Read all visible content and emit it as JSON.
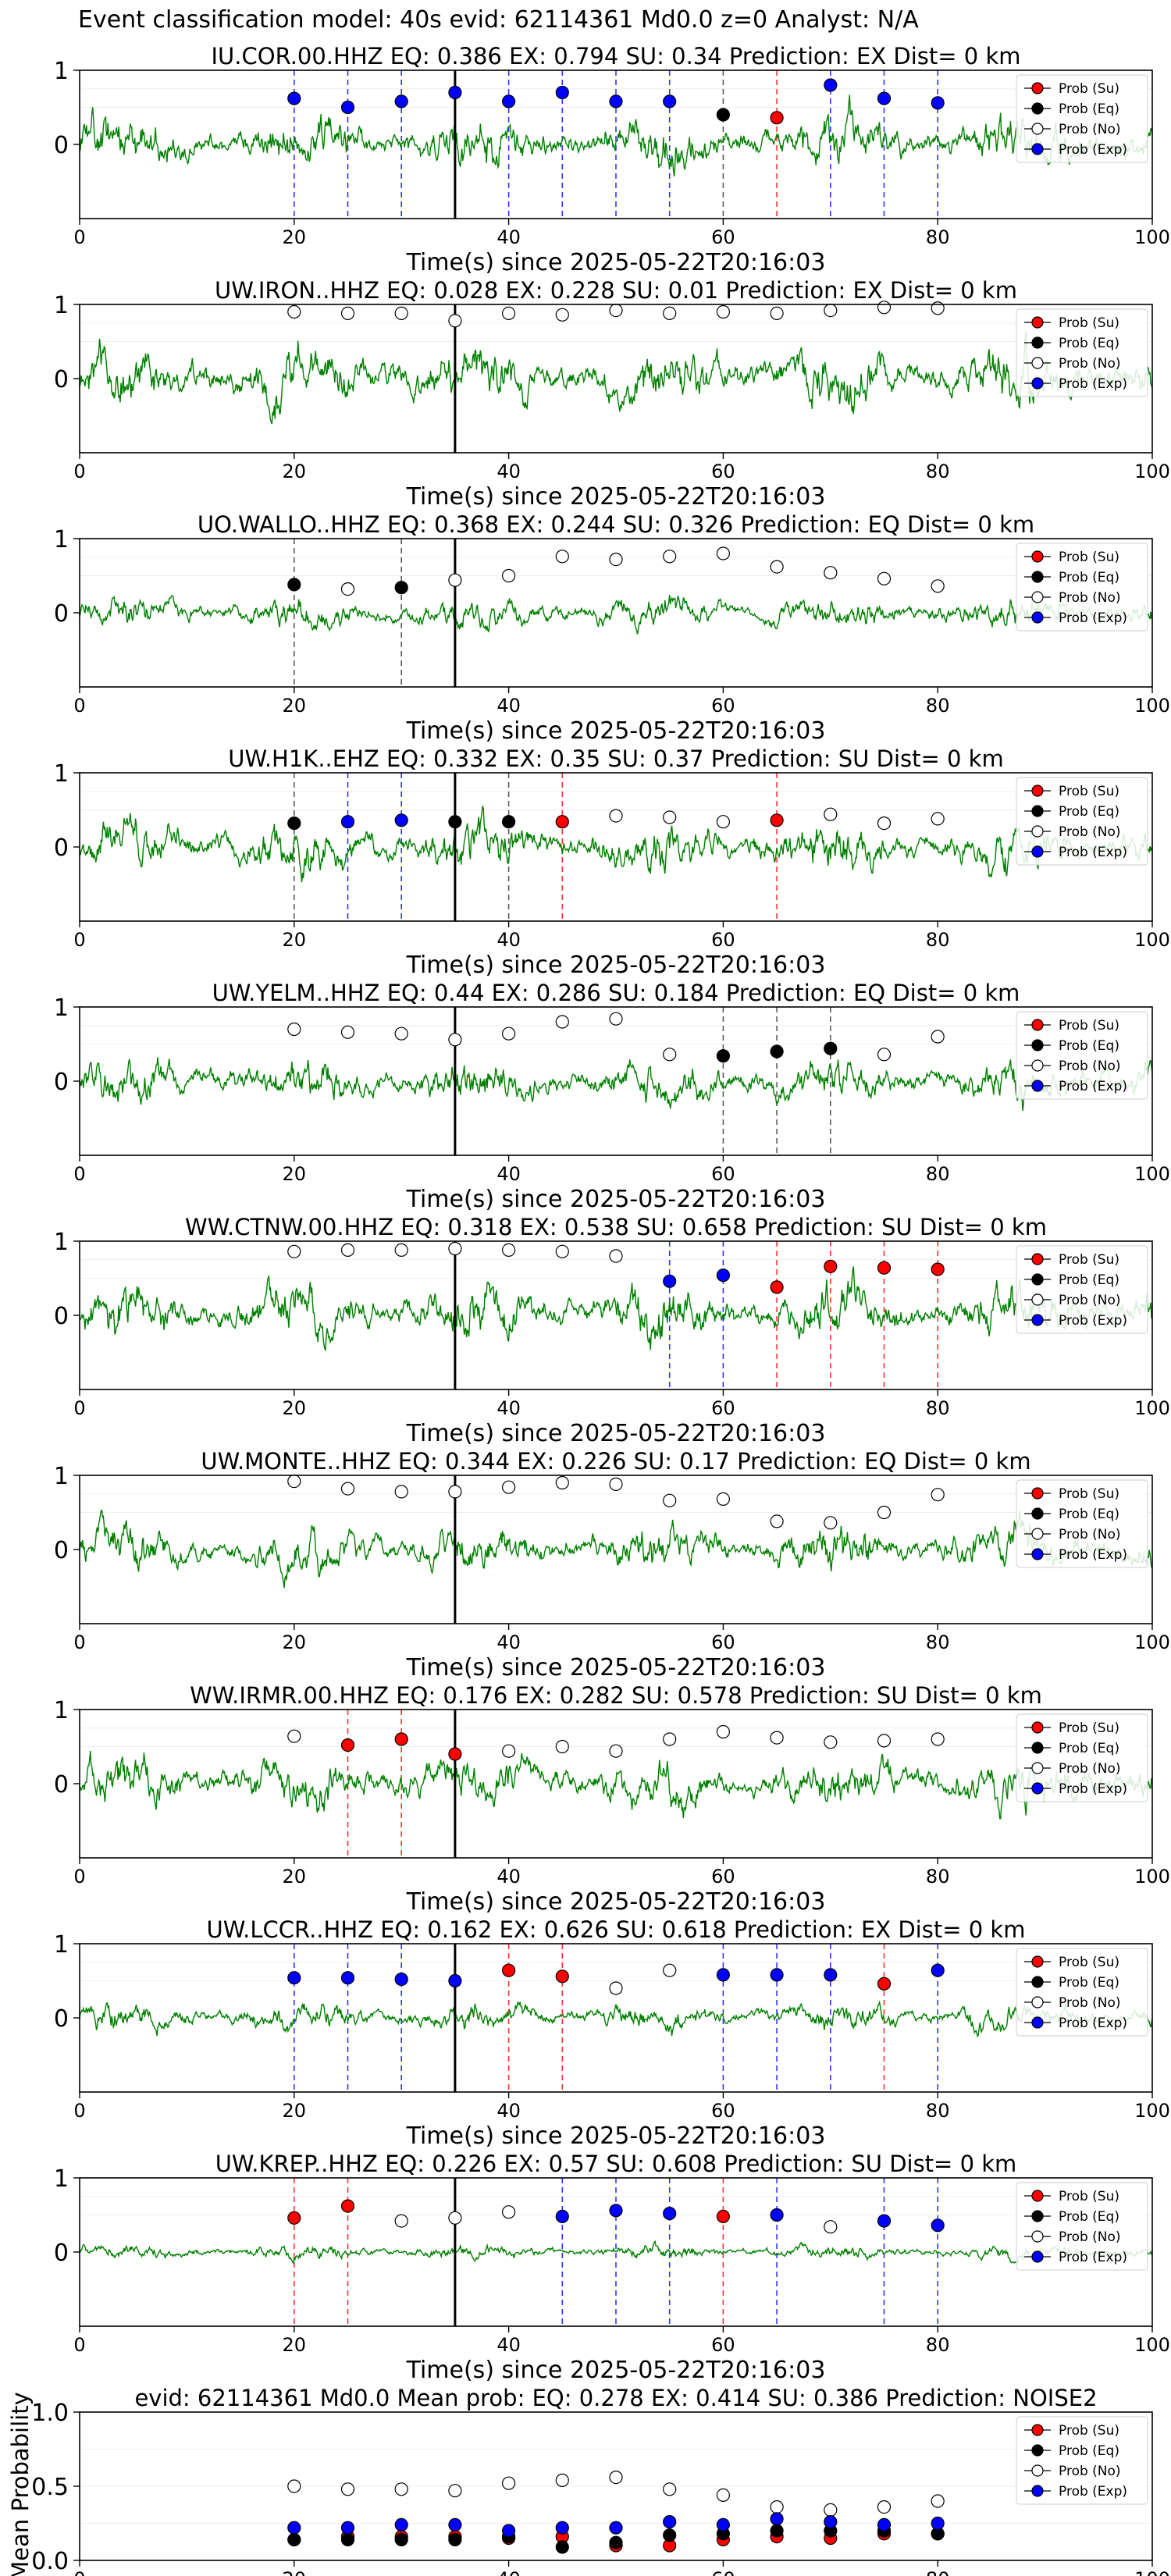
{
  "suptitle": "Event classification model: 40s evid: 62114361 Md0.0 z=0 Analyst: N/A",
  "legend": [
    "Prob (Su)",
    "Prob (Eq)",
    "Prob (No)",
    "Prob (Exp)"
  ],
  "colors": {
    "su": "#ff0000",
    "eq": "#000000",
    "no": "#ffffff",
    "exp": "#0000ff",
    "waveform": "#008000"
  },
  "xlabel": "Time(s) since 2025-05-22T20:16:03",
  "x_ticks": [
    0,
    20,
    40,
    60,
    80,
    100
  ],
  "y_ticks": [
    0,
    1
  ],
  "event_line_x": 35,
  "chart_data": [
    {
      "type": "line",
      "title": "IU.COR.00.HHZ   EQ: 0.386  EX: 0.794  SU: 0.34   Prediction: EX    Dist= 0 km",
      "xlim": [
        0,
        100
      ],
      "ylim": [
        -1,
        1
      ],
      "amp": 0.55,
      "seed": 11,
      "points": [
        {
          "x": 20,
          "y": 0.62,
          "c": "exp"
        },
        {
          "x": 25,
          "y": 0.5,
          "c": "exp"
        },
        {
          "x": 30,
          "y": 0.58,
          "c": "exp"
        },
        {
          "x": 35,
          "y": 0.7,
          "c": "exp"
        },
        {
          "x": 40,
          "y": 0.58,
          "c": "exp"
        },
        {
          "x": 45,
          "y": 0.7,
          "c": "exp"
        },
        {
          "x": 50,
          "y": 0.58,
          "c": "exp"
        },
        {
          "x": 55,
          "y": 0.58,
          "c": "exp"
        },
        {
          "x": 60,
          "y": 0.4,
          "c": "eq"
        },
        {
          "x": 65,
          "y": 0.36,
          "c": "su"
        },
        {
          "x": 70,
          "y": 0.8,
          "c": "exp"
        },
        {
          "x": 75,
          "y": 0.62,
          "c": "exp"
        },
        {
          "x": 80,
          "y": 0.56,
          "c": "exp"
        }
      ]
    },
    {
      "type": "line",
      "title": "UW.IRON..HHZ   EQ: 0.028  EX: 0.228  SU: 0.01   Prediction: EX    Dist= 0 km",
      "xlim": [
        0,
        100
      ],
      "ylim": [
        -1,
        1
      ],
      "amp": 0.65,
      "seed": 23,
      "points": [
        {
          "x": 20,
          "y": 0.9,
          "c": "no"
        },
        {
          "x": 25,
          "y": 0.88,
          "c": "no"
        },
        {
          "x": 30,
          "y": 0.88,
          "c": "no"
        },
        {
          "x": 35,
          "y": 0.78,
          "c": "no"
        },
        {
          "x": 40,
          "y": 0.88,
          "c": "no"
        },
        {
          "x": 45,
          "y": 0.86,
          "c": "no"
        },
        {
          "x": 50,
          "y": 0.92,
          "c": "no"
        },
        {
          "x": 55,
          "y": 0.88,
          "c": "no"
        },
        {
          "x": 60,
          "y": 0.9,
          "c": "no"
        },
        {
          "x": 65,
          "y": 0.88,
          "c": "no"
        },
        {
          "x": 70,
          "y": 0.92,
          "c": "no"
        },
        {
          "x": 75,
          "y": 0.96,
          "c": "no"
        },
        {
          "x": 80,
          "y": 0.95,
          "c": "no"
        }
      ]
    },
    {
      "type": "line",
      "title": "UO.WALLO..HHZ   EQ: 0.368  EX: 0.244  SU: 0.326   Prediction: EQ    Dist= 0 km",
      "xlim": [
        0,
        100
      ],
      "ylim": [
        -1,
        1
      ],
      "amp": 0.35,
      "seed": 37,
      "points": [
        {
          "x": 20,
          "y": 0.38,
          "c": "eq"
        },
        {
          "x": 25,
          "y": 0.32,
          "c": "no"
        },
        {
          "x": 30,
          "y": 0.34,
          "c": "eq"
        },
        {
          "x": 35,
          "y": 0.44,
          "c": "no"
        },
        {
          "x": 40,
          "y": 0.5,
          "c": "no"
        },
        {
          "x": 45,
          "y": 0.76,
          "c": "no"
        },
        {
          "x": 50,
          "y": 0.72,
          "c": "no"
        },
        {
          "x": 55,
          "y": 0.76,
          "c": "no"
        },
        {
          "x": 60,
          "y": 0.8,
          "c": "no"
        },
        {
          "x": 65,
          "y": 0.62,
          "c": "no"
        },
        {
          "x": 70,
          "y": 0.54,
          "c": "no"
        },
        {
          "x": 75,
          "y": 0.46,
          "c": "no"
        },
        {
          "x": 80,
          "y": 0.36,
          "c": "no"
        }
      ]
    },
    {
      "type": "line",
      "title": "UW.H1K..EHZ   EQ: 0.332  EX: 0.35  SU: 0.37   Prediction: SU    Dist= 0 km",
      "xlim": [
        0,
        100
      ],
      "ylim": [
        -1,
        1
      ],
      "amp": 0.55,
      "seed": 41,
      "points": [
        {
          "x": 20,
          "y": 0.32,
          "c": "eq"
        },
        {
          "x": 25,
          "y": 0.34,
          "c": "exp"
        },
        {
          "x": 30,
          "y": 0.36,
          "c": "exp"
        },
        {
          "x": 35,
          "y": 0.34,
          "c": "eq"
        },
        {
          "x": 40,
          "y": 0.34,
          "c": "eq"
        },
        {
          "x": 45,
          "y": 0.34,
          "c": "su"
        },
        {
          "x": 50,
          "y": 0.42,
          "c": "no"
        },
        {
          "x": 55,
          "y": 0.4,
          "c": "no"
        },
        {
          "x": 60,
          "y": 0.34,
          "c": "no"
        },
        {
          "x": 65,
          "y": 0.36,
          "c": "su"
        },
        {
          "x": 70,
          "y": 0.44,
          "c": "no"
        },
        {
          "x": 75,
          "y": 0.32,
          "c": "no"
        },
        {
          "x": 80,
          "y": 0.38,
          "c": "no"
        }
      ]
    },
    {
      "type": "line",
      "title": "UW.YELM..HHZ   EQ: 0.44  EX: 0.286  SU: 0.184   Prediction: EQ    Dist= 0 km",
      "xlim": [
        0,
        100
      ],
      "ylim": [
        -1,
        1
      ],
      "amp": 0.5,
      "seed": 53,
      "points": [
        {
          "x": 20,
          "y": 0.7,
          "c": "no"
        },
        {
          "x": 25,
          "y": 0.66,
          "c": "no"
        },
        {
          "x": 30,
          "y": 0.64,
          "c": "no"
        },
        {
          "x": 35,
          "y": 0.56,
          "c": "no"
        },
        {
          "x": 40,
          "y": 0.64,
          "c": "no"
        },
        {
          "x": 45,
          "y": 0.8,
          "c": "no"
        },
        {
          "x": 50,
          "y": 0.84,
          "c": "no"
        },
        {
          "x": 55,
          "y": 0.36,
          "c": "no"
        },
        {
          "x": 60,
          "y": 0.34,
          "c": "eq"
        },
        {
          "x": 65,
          "y": 0.4,
          "c": "eq"
        },
        {
          "x": 70,
          "y": 0.44,
          "c": "eq"
        },
        {
          "x": 75,
          "y": 0.36,
          "c": "no"
        },
        {
          "x": 80,
          "y": 0.6,
          "c": "no"
        }
      ]
    },
    {
      "type": "line",
      "title": "WW.CTNW.00.HHZ   EQ: 0.318  EX: 0.538  SU: 0.658   Prediction: SU    Dist= 0 km",
      "xlim": [
        0,
        100
      ],
      "ylim": [
        -1,
        1
      ],
      "amp": 0.6,
      "seed": 67,
      "points": [
        {
          "x": 20,
          "y": 0.86,
          "c": "no"
        },
        {
          "x": 25,
          "y": 0.88,
          "c": "no"
        },
        {
          "x": 30,
          "y": 0.88,
          "c": "no"
        },
        {
          "x": 35,
          "y": 0.9,
          "c": "no"
        },
        {
          "x": 40,
          "y": 0.88,
          "c": "no"
        },
        {
          "x": 45,
          "y": 0.86,
          "c": "no"
        },
        {
          "x": 50,
          "y": 0.8,
          "c": "no"
        },
        {
          "x": 55,
          "y": 0.46,
          "c": "exp"
        },
        {
          "x": 60,
          "y": 0.54,
          "c": "exp"
        },
        {
          "x": 65,
          "y": 0.38,
          "c": "su"
        },
        {
          "x": 70,
          "y": 0.66,
          "c": "su"
        },
        {
          "x": 75,
          "y": 0.64,
          "c": "su"
        },
        {
          "x": 80,
          "y": 0.62,
          "c": "su"
        }
      ]
    },
    {
      "type": "line",
      "title": "UW.MONTE..HHZ   EQ: 0.344  EX: 0.226  SU: 0.17   Prediction: EQ    Dist= 0 km",
      "xlim": [
        0,
        100
      ],
      "ylim": [
        -1,
        1
      ],
      "amp": 0.5,
      "seed": 71,
      "points": [
        {
          "x": 20,
          "y": 0.92,
          "c": "no"
        },
        {
          "x": 25,
          "y": 0.82,
          "c": "no"
        },
        {
          "x": 30,
          "y": 0.78,
          "c": "no"
        },
        {
          "x": 35,
          "y": 0.78,
          "c": "no"
        },
        {
          "x": 40,
          "y": 0.84,
          "c": "no"
        },
        {
          "x": 45,
          "y": 0.9,
          "c": "no"
        },
        {
          "x": 50,
          "y": 0.88,
          "c": "no"
        },
        {
          "x": 55,
          "y": 0.66,
          "c": "no"
        },
        {
          "x": 60,
          "y": 0.68,
          "c": "no"
        },
        {
          "x": 65,
          "y": 0.38,
          "c": "no"
        },
        {
          "x": 70,
          "y": 0.36,
          "c": "no"
        },
        {
          "x": 75,
          "y": 0.5,
          "c": "no"
        },
        {
          "x": 80,
          "y": 0.74,
          "c": "no"
        }
      ]
    },
    {
      "type": "line",
      "title": "WW.IRMR.00.HHZ   EQ: 0.176  EX: 0.282  SU: 0.578   Prediction: SU    Dist= 0 km",
      "xlim": [
        0,
        100
      ],
      "ylim": [
        -1,
        1
      ],
      "amp": 0.55,
      "seed": 83,
      "points": [
        {
          "x": 20,
          "y": 0.64,
          "c": "no"
        },
        {
          "x": 25,
          "y": 0.52,
          "c": "su"
        },
        {
          "x": 30,
          "y": 0.6,
          "c": "su"
        },
        {
          "x": 35,
          "y": 0.4,
          "c": "su"
        },
        {
          "x": 40,
          "y": 0.44,
          "c": "no"
        },
        {
          "x": 45,
          "y": 0.5,
          "c": "no"
        },
        {
          "x": 50,
          "y": 0.44,
          "c": "no"
        },
        {
          "x": 55,
          "y": 0.6,
          "c": "no"
        },
        {
          "x": 60,
          "y": 0.7,
          "c": "no"
        },
        {
          "x": 65,
          "y": 0.62,
          "c": "no"
        },
        {
          "x": 70,
          "y": 0.56,
          "c": "no"
        },
        {
          "x": 75,
          "y": 0.58,
          "c": "no"
        },
        {
          "x": 80,
          "y": 0.6,
          "c": "no"
        }
      ]
    },
    {
      "type": "line",
      "title": "UW.LCCR..HHZ   EQ: 0.162  EX: 0.626  SU: 0.618   Prediction: EX    Dist= 0 km",
      "xlim": [
        0,
        100
      ],
      "ylim": [
        -1,
        1
      ],
      "amp": 0.3,
      "seed": 97,
      "points": [
        {
          "x": 20,
          "y": 0.54,
          "c": "exp"
        },
        {
          "x": 25,
          "y": 0.54,
          "c": "exp"
        },
        {
          "x": 30,
          "y": 0.52,
          "c": "exp"
        },
        {
          "x": 35,
          "y": 0.5,
          "c": "exp"
        },
        {
          "x": 40,
          "y": 0.64,
          "c": "su"
        },
        {
          "x": 45,
          "y": 0.56,
          "c": "su"
        },
        {
          "x": 50,
          "y": 0.4,
          "c": "no"
        },
        {
          "x": 55,
          "y": 0.64,
          "c": "no"
        },
        {
          "x": 60,
          "y": 0.58,
          "c": "exp"
        },
        {
          "x": 65,
          "y": 0.58,
          "c": "exp"
        },
        {
          "x": 70,
          "y": 0.58,
          "c": "exp"
        },
        {
          "x": 75,
          "y": 0.46,
          "c": "su"
        },
        {
          "x": 80,
          "y": 0.64,
          "c": "exp"
        }
      ]
    },
    {
      "type": "line",
      "title": "UW.KREP..HHZ   EQ: 0.226  EX: 0.57  SU: 0.608   Prediction: SU    Dist= 0 km",
      "xlim": [
        0,
        100
      ],
      "ylim": [
        -1,
        1
      ],
      "amp": 0.15,
      "seed": 101,
      "points": [
        {
          "x": 20,
          "y": 0.46,
          "c": "su"
        },
        {
          "x": 25,
          "y": 0.62,
          "c": "su"
        },
        {
          "x": 30,
          "y": 0.42,
          "c": "no"
        },
        {
          "x": 35,
          "y": 0.46,
          "c": "no"
        },
        {
          "x": 40,
          "y": 0.54,
          "c": "no"
        },
        {
          "x": 45,
          "y": 0.48,
          "c": "exp"
        },
        {
          "x": 50,
          "y": 0.56,
          "c": "exp"
        },
        {
          "x": 55,
          "y": 0.52,
          "c": "exp"
        },
        {
          "x": 60,
          "y": 0.48,
          "c": "su"
        },
        {
          "x": 65,
          "y": 0.5,
          "c": "exp"
        },
        {
          "x": 70,
          "y": 0.34,
          "c": "no"
        },
        {
          "x": 75,
          "y": 0.42,
          "c": "exp"
        },
        {
          "x": 80,
          "y": 0.36,
          "c": "exp"
        }
      ]
    },
    {
      "type": "scatter",
      "title": "evid: 62114361  Md0.0   Mean prob:   EQ: 0.278  EX: 0.414  SU: 0.386   Prediction: NOISE2",
      "xlim": [
        0,
        100
      ],
      "ylim": [
        0,
        1
      ],
      "ylabel": "Mean Probability",
      "y_ticks": [
        "0.0",
        "0.5",
        "1.0"
      ],
      "series": [
        {
          "name": "Prob (Su)",
          "c": "su",
          "x": [
            20,
            25,
            30,
            35,
            40,
            45,
            50,
            55,
            60,
            65,
            70,
            75,
            80
          ],
          "y": [
            0.14,
            0.16,
            0.16,
            0.16,
            0.15,
            0.16,
            0.1,
            0.1,
            0.14,
            0.16,
            0.15,
            0.18,
            0.18
          ]
        },
        {
          "name": "Prob (Eq)",
          "c": "eq",
          "x": [
            20,
            25,
            30,
            35,
            40,
            45,
            50,
            55,
            60,
            65,
            70,
            75,
            80
          ],
          "y": [
            0.14,
            0.14,
            0.14,
            0.14,
            0.16,
            0.09,
            0.12,
            0.17,
            0.18,
            0.2,
            0.2,
            0.2,
            0.18
          ]
        },
        {
          "name": "Prob (No)",
          "c": "no",
          "x": [
            20,
            25,
            30,
            35,
            40,
            45,
            50,
            55,
            60,
            65,
            70,
            75,
            80
          ],
          "y": [
            0.5,
            0.48,
            0.48,
            0.47,
            0.52,
            0.54,
            0.56,
            0.48,
            0.44,
            0.36,
            0.34,
            0.36,
            0.4
          ]
        },
        {
          "name": "Prob (Exp)",
          "c": "exp",
          "x": [
            20,
            25,
            30,
            35,
            40,
            45,
            50,
            55,
            60,
            65,
            70,
            75,
            80
          ],
          "y": [
            0.22,
            0.22,
            0.24,
            0.24,
            0.2,
            0.22,
            0.22,
            0.26,
            0.24,
            0.28,
            0.26,
            0.24,
            0.25
          ]
        }
      ]
    }
  ]
}
